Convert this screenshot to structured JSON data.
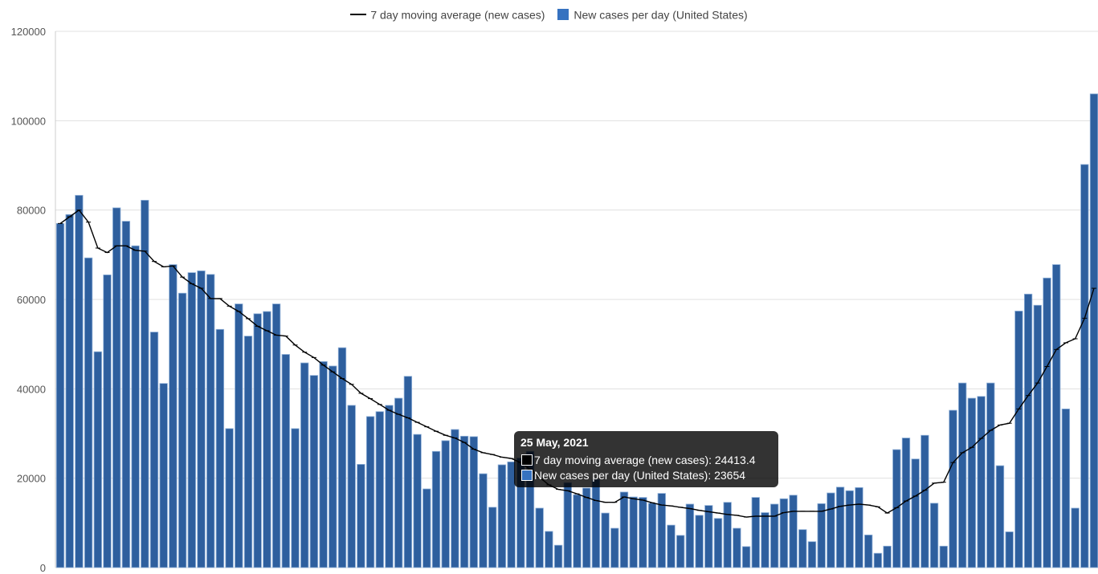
{
  "legend": {
    "line_label": "7 day moving average (new cases)",
    "bar_label": "New cases per day (United States)"
  },
  "tooltip": {
    "title": "25 May, 2021",
    "line_row": "7 day moving average (new cases): 24413.4",
    "bar_row": "New cases per day (United States): 23654"
  },
  "colors": {
    "bar": "#2e5f9e",
    "bar_edge": "#8fb0d8",
    "line": "#000000",
    "grid": "#e0e0e0"
  },
  "chart_data": {
    "type": "bar",
    "title": "",
    "xlabel": "",
    "ylabel": "",
    "ylim": [
      0,
      120000
    ],
    "yticks": [
      "0",
      "20000",
      "40000",
      "60000",
      "80000",
      "100000",
      "120000"
    ],
    "grid": true,
    "legend_position": "top",
    "highlighted_index": 48,
    "series": [
      {
        "name": "New cases per day (United States)",
        "type": "bar",
        "values": [
          77000,
          79000,
          83300,
          69300,
          48300,
          65500,
          80500,
          77500,
          72000,
          82200,
          52700,
          41200,
          67800,
          61400,
          66000,
          66400,
          65600,
          53300,
          31100,
          59000,
          51800,
          56800,
          57300,
          59000,
          47700,
          31100,
          45800,
          43000,
          46100,
          45100,
          49200,
          36300,
          23100,
          33800,
          34900,
          36300,
          37900,
          42800,
          29800,
          17600,
          26000,
          28400,
          30900,
          29400,
          29300,
          21000,
          13500,
          23000,
          23654,
          24500,
          26000,
          13300,
          8100,
          5000,
          19000,
          16300,
          17800,
          19700,
          12200,
          8800,
          16900,
          15800,
          15700,
          14400,
          16600,
          9500,
          7200,
          14200,
          11700,
          13900,
          11000,
          14600,
          8800,
          4700,
          15700,
          12300,
          14200,
          15400,
          16200,
          8500,
          5800,
          14300,
          16700,
          18000,
          17200,
          17900,
          7300,
          3200,
          4800,
          26400,
          29000,
          24300,
          29600,
          14400,
          4800,
          35200,
          41300,
          37900,
          38300,
          41300,
          22800,
          8000,
          57400,
          61200,
          58700,
          64800,
          67800,
          35500,
          13300,
          90200,
          106000
        ]
      },
      {
        "name": "7 day moving average (new cases)",
        "type": "line",
        "values": [
          77000,
          78500,
          80000,
          77300,
          71500,
          70500,
          72000,
          72000,
          71000,
          70800,
          68500,
          67300,
          67500,
          65000,
          63500,
          62500,
          60200,
          60200,
          58500,
          57300,
          55700,
          54000,
          53000,
          52000,
          51800,
          49800,
          48200,
          47000,
          45300,
          43800,
          42300,
          41000,
          39000,
          37800,
          36500,
          35200,
          34300,
          33500,
          32500,
          31500,
          30500,
          29600,
          29000,
          28000,
          26500,
          25700,
          25300,
          24700,
          24413.4,
          23500,
          22000,
          20200,
          18500,
          17500,
          17200,
          16500,
          15700,
          15000,
          14600,
          14600,
          15800,
          15400,
          15100,
          14500,
          14000,
          13800,
          13500,
          13200,
          12800,
          12500,
          12200,
          11900,
          11700,
          11300,
          11500,
          11500,
          11500,
          12300,
          12600,
          12600,
          12600,
          12600,
          13100,
          13700,
          14000,
          14200,
          14000,
          13600,
          12200,
          13400,
          14900,
          16000,
          17300,
          18900,
          19100,
          23500,
          25700,
          26900,
          28900,
          30700,
          31900,
          32300,
          35500,
          38500,
          41300,
          45000,
          48800,
          50300,
          51200,
          55800,
          62500
        ]
      }
    ]
  }
}
